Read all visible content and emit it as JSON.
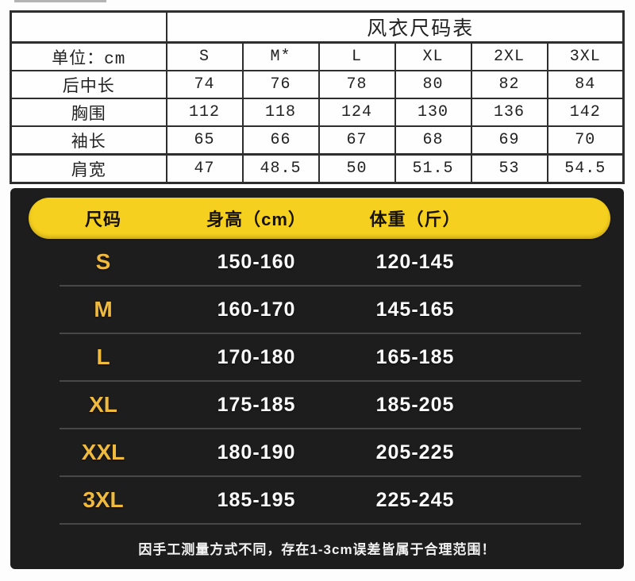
{
  "top_table": {
    "title": "风衣尺码表",
    "unit_label": "单位：cm",
    "columns": [
      "S",
      "M*",
      "L",
      "XL",
      "2XL",
      "3XL"
    ],
    "rows": [
      {
        "label": "后中长",
        "values": [
          "74",
          "76",
          "78",
          "80",
          "82",
          "84"
        ]
      },
      {
        "label": "胸围",
        "values": [
          "112",
          "118",
          "124",
          "130",
          "136",
          "142"
        ]
      },
      {
        "label": "袖长",
        "values": [
          "65",
          "66",
          "67",
          "68",
          "69",
          "70"
        ]
      },
      {
        "label": "肩宽",
        "values": [
          "47",
          "48.5",
          "50",
          "51.5",
          "53",
          "54.5"
        ]
      }
    ]
  },
  "size_panel": {
    "header": {
      "size": "尺码",
      "height": "身高（cm）",
      "weight": "体重（斤）"
    },
    "rows": [
      {
        "size": "S",
        "height": "150-160",
        "weight": "120-145"
      },
      {
        "size": "M",
        "height": "160-170",
        "weight": "145-165"
      },
      {
        "size": "L",
        "height": "170-180",
        "weight": "165-185"
      },
      {
        "size": "XL",
        "height": "175-185",
        "weight": "185-205"
      },
      {
        "size": "XXL",
        "height": "180-190",
        "weight": "205-225"
      },
      {
        "size": "3XL",
        "height": "185-195",
        "weight": "225-245"
      }
    ],
    "note": "因手工测量方式不同，存在1-3cm误差皆属于合理范围！",
    "colors": {
      "header_bg": "#f6d01e",
      "size_label": "#efba3e",
      "panel_bg": "#1d1d1d",
      "value_text": "#fbfbfb"
    }
  }
}
